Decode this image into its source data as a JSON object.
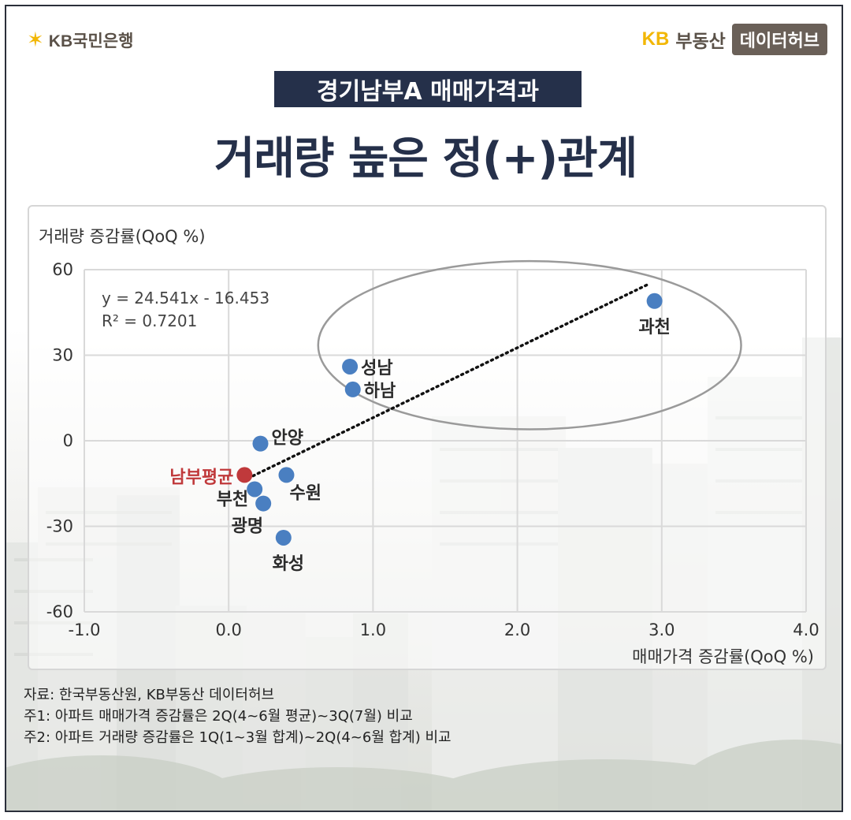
{
  "header": {
    "logo_left_text": "KB국민은행",
    "logo_right_kb": "KB",
    "logo_right_brand": "부동산",
    "logo_right_hub": "데이터허브"
  },
  "subtitle": "경기남부A 매매가격과",
  "title": "거래량 높은 정(+)관계",
  "colors": {
    "point": "#4a7fc1",
    "highlight": "#c0393b",
    "navy": "#25304a"
  },
  "chart_data": {
    "type": "scatter",
    "xlabel": "매매가격 증감률(QoQ %)",
    "ylabel": "거래량 증감률(QoQ %)",
    "xlim": [
      -1.0,
      4.0
    ],
    "ylim": [
      -60,
      60
    ],
    "x_ticks": [
      "-1.0",
      "0.0",
      "1.0",
      "2.0",
      "3.0",
      "4.0"
    ],
    "y_ticks": [
      "60",
      "30",
      "0",
      "-30",
      "-60"
    ],
    "grid": true,
    "points": [
      {
        "label": "과천",
        "x": 2.95,
        "y": 49
      },
      {
        "label": "성남",
        "x": 0.84,
        "y": 26
      },
      {
        "label": "하남",
        "x": 0.86,
        "y": 18
      },
      {
        "label": "안양",
        "x": 0.22,
        "y": -1
      },
      {
        "label": "수원",
        "x": 0.4,
        "y": -12
      },
      {
        "label": "부천",
        "x": 0.18,
        "y": -17
      },
      {
        "label": "광명",
        "x": 0.24,
        "y": -22
      },
      {
        "label": "화성",
        "x": 0.38,
        "y": -34
      },
      {
        "label": "남부평균",
        "x": 0.11,
        "y": -12,
        "highlight": true
      }
    ],
    "trendline": {
      "slope": 24.541,
      "intercept": -16.453,
      "x_range": [
        0.1,
        2.9
      ]
    },
    "equation": "y = 24.541x - 16.453",
    "r_squared": "R² = 0.7201"
  },
  "notes": [
    "자료: 한국부동산원, KB부동산 데이터허브",
    "주1: 아파트 매매가격 증감률은 2Q(4~6월 평균)~3Q(7월) 비교",
    "주2: 아파트 거래량 증감률은 1Q(1~3월 합계)~2Q(4~6월 합계) 비교"
  ]
}
